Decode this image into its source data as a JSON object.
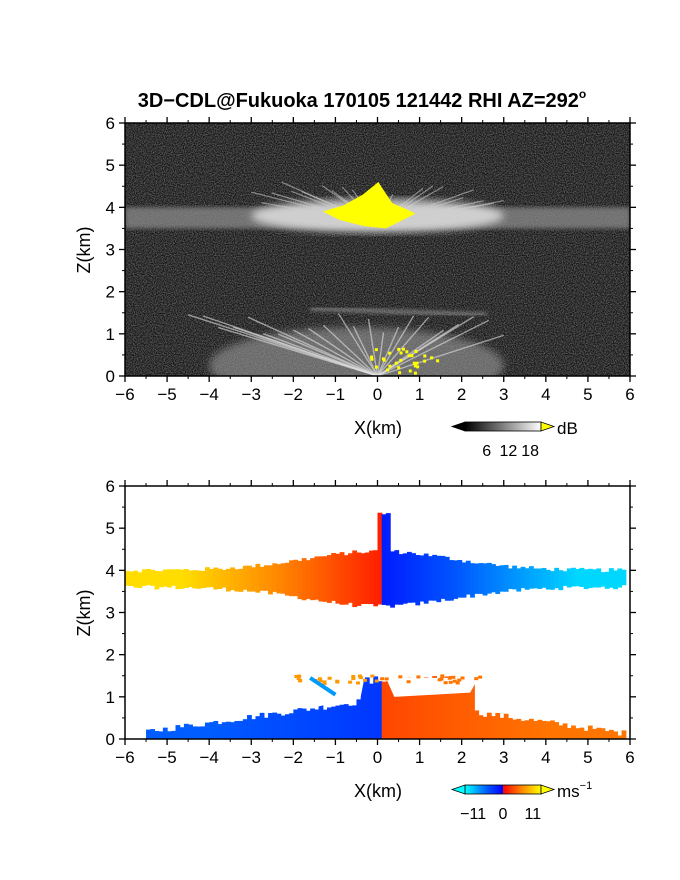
{
  "title": {
    "main": "3D−CDL@Fukuoka 170105 121442 RHI AZ=292",
    "degree": "o"
  },
  "chart_data": [
    {
      "type": "heatmap",
      "name": "reflectivity",
      "xlabel": "X(km)",
      "ylabel": "Z(km)",
      "xlim": [
        -6,
        6
      ],
      "ylim": [
        0,
        6
      ],
      "xticks": [
        "−6",
        "−5",
        "−4",
        "−3",
        "−2",
        "−1",
        "0",
        "1",
        "2",
        "3",
        "4",
        "5",
        "6"
      ],
      "yticks": [
        "0",
        "1",
        "2",
        "3",
        "4",
        "5",
        "6"
      ],
      "colorbar": {
        "unit": "dB",
        "ticks": [
          "6",
          "12",
          "18"
        ],
        "tick_values": [
          6,
          12,
          18
        ],
        "range": [
          0,
          21
        ],
        "colors": [
          "#000000",
          "#ffffff"
        ],
        "over_color": "#ffff00"
      },
      "features": [
        {
          "kind": "layer",
          "x_range": [
            -6,
            6
          ],
          "z_range": [
            3.5,
            4.0
          ],
          "peak_intensity_db": 16
        },
        {
          "kind": "saturated",
          "x_range": [
            -1.3,
            0.9
          ],
          "z_range": [
            3.5,
            4.6
          ],
          "color": "#ffff00"
        },
        {
          "kind": "ground_echo",
          "x_range": [
            -4.5,
            3.0
          ],
          "z_range": [
            0,
            1.5
          ],
          "peak_intensity_db": 16
        }
      ]
    },
    {
      "type": "heatmap",
      "name": "doppler_velocity",
      "xlabel": "X(km)",
      "ylabel": "Z(km)",
      "xlim": [
        -6,
        6
      ],
      "ylim": [
        0,
        6
      ],
      "xticks": [
        "−6",
        "−5",
        "−4",
        "−3",
        "−2",
        "−1",
        "0",
        "1",
        "2",
        "3",
        "4",
        "5",
        "6"
      ],
      "yticks": [
        "0",
        "1",
        "2",
        "3",
        "4",
        "5",
        "6"
      ],
      "colorbar": {
        "unit": "ms",
        "unit_exponent": "−1",
        "ticks": [
          "−11",
          "0",
          "11"
        ],
        "tick_values": [
          -11,
          0,
          11
        ],
        "range": [
          -14,
          14
        ],
        "colors": [
          "#00ffff",
          "#0055ff",
          "#0000ff",
          "#ff0000",
          "#ff8800",
          "#ffff00"
        ]
      },
      "features": [
        {
          "kind": "layer",
          "x_range": [
            -6,
            5.8
          ],
          "z_range": [
            3.3,
            4.3
          ],
          "velocity_left_ms": 11,
          "velocity_right_ms": -11
        },
        {
          "kind": "layer",
          "x_range": [
            -5.5,
            5.8
          ],
          "z_range": [
            0,
            1.5
          ],
          "velocity_left_ms": -6,
          "velocity_right_ms": 6
        }
      ]
    }
  ]
}
